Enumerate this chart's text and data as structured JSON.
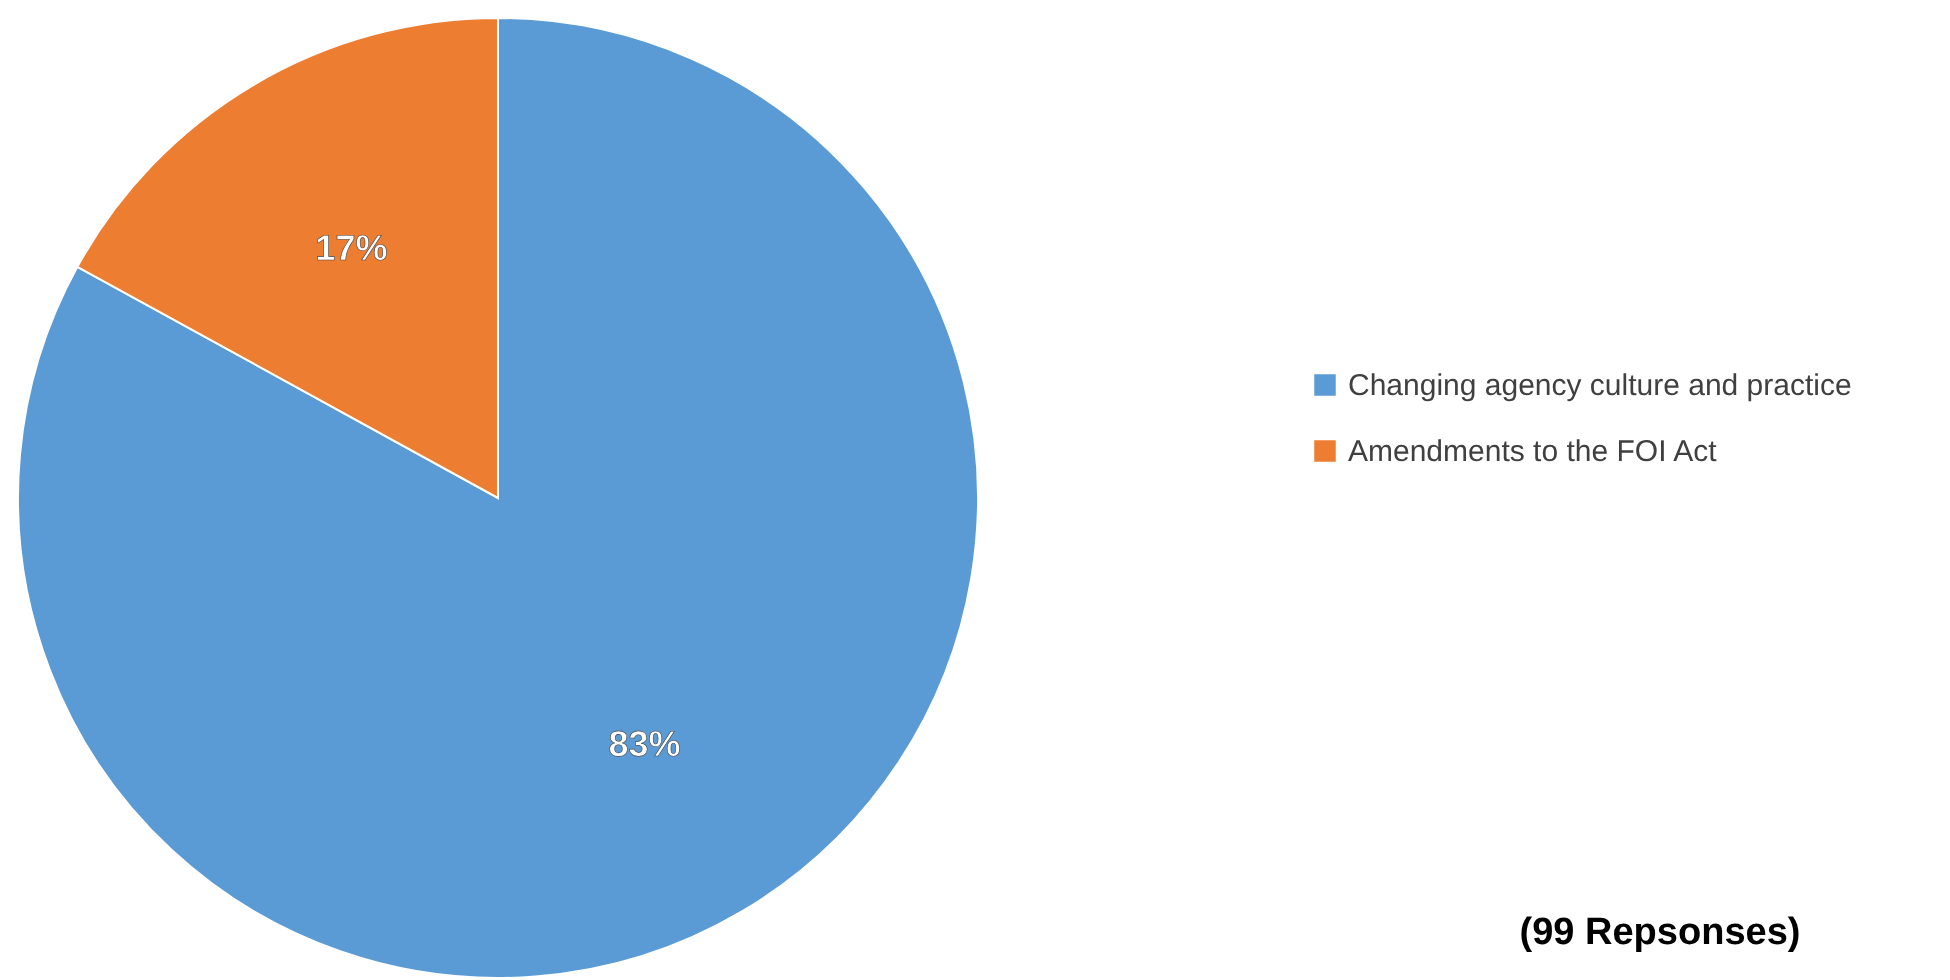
{
  "chart_data": {
    "type": "pie",
    "categories": [
      "Changing agency culture and practice",
      "Amendments to the FOI Act"
    ],
    "values": [
      83,
      17
    ],
    "colors": [
      "#5b9bd5",
      "#ed7d31"
    ],
    "value_labels": [
      "83%",
      "17%"
    ],
    "legend": "right",
    "annotations": [
      "(99 Repsonses)"
    ]
  }
}
